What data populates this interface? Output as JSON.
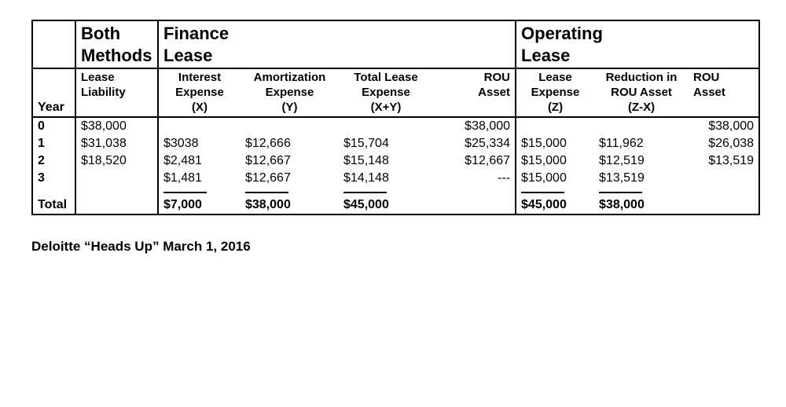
{
  "sections": {
    "both_line1": "Both",
    "both_line2": "Methods",
    "fin_line1": "Finance",
    "fin_line2": "Lease",
    "op_line1": "Operating",
    "op_line2": "Lease"
  },
  "headers": {
    "year": "Year",
    "lease_liability_l1": "Lease",
    "lease_liability_l2": "Liability",
    "interest_l1": "Interest",
    "interest_l2": "Expense",
    "interest_l3": "(X)",
    "amort_l1": "Amortization",
    "amort_l2": "Expense",
    "amort_l3": "(Y)",
    "total_l1": "Total Lease",
    "total_l2": "Expense",
    "total_l3": "(X+Y)",
    "rou1_l1": "ROU",
    "rou1_l2": "Asset",
    "lex_l1": "Lease",
    "lex_l2": "Expense",
    "lex_l3": "(Z)",
    "red_l1": "Reduction in",
    "red_l2": "ROU Asset",
    "red_l3": "(Z-X)",
    "rou2_l1": "ROU",
    "rou2_l2": "Asset"
  },
  "rows": {
    "r0": {
      "year": "0",
      "liab": "$38,000",
      "int": "",
      "amort": "",
      "tot": "",
      "rou1": "$38,000",
      "lex": "",
      "red": "",
      "rou2": "$38,000"
    },
    "r1": {
      "year": "1",
      "liab": "$31,038",
      "int": "$3038",
      "amort": "$12,666",
      "tot": "$15,704",
      "rou1": "$25,334",
      "lex": "$15,000",
      "red": "$11,962",
      "rou2": "$26,038"
    },
    "r2": {
      "year": "2",
      "liab": "$18,520",
      "int": "$2,481",
      "amort": "$12,667",
      "tot": "$15,148",
      "rou1": "$12,667",
      "lex": "$15,000",
      "red": "$12,519",
      "rou2": "$13,519"
    },
    "r3": {
      "year": "3",
      "liab": "",
      "int": "$1,481",
      "amort": "$12,667",
      "tot": "$14,148",
      "rou1": "---",
      "lex": "$15,000",
      "red": "$13,519",
      "rou2": ""
    }
  },
  "totals": {
    "label": "Total",
    "int": "$7,000",
    "amort": "$38,000",
    "tot": "$45,000",
    "lex": "$45,000",
    "red": "$38,000"
  },
  "caption": "Deloitte “Heads Up” March 1, 2016",
  "style": {
    "border_color": "#000000",
    "background": "#ffffff",
    "font_family": "Helvetica Neue, Helvetica, Arial, sans-serif",
    "header_fontsize_pt": 16,
    "body_fontsize_pt": 12
  }
}
